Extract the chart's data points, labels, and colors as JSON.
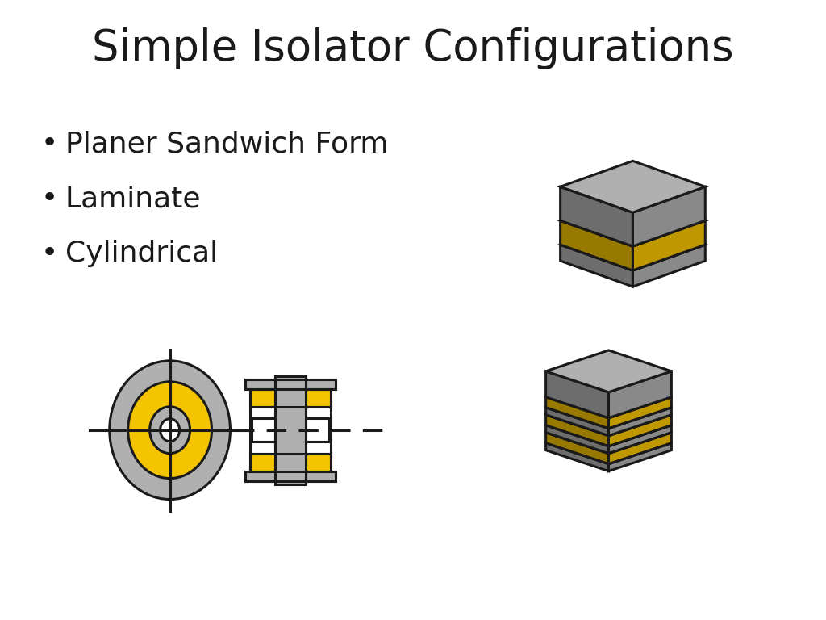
{
  "title": "Simple Isolator Configurations",
  "title_fontsize": 38,
  "bullet_items": [
    "Planer Sandwich Form",
    "Laminate",
    "Cylindrical"
  ],
  "bullet_fontsize": 26,
  "bg_color": "#ffffff",
  "gray_color": "#b0b0b0",
  "gray_dark": "#888888",
  "gray_darker": "#666666",
  "yellow_color": "#f5c400",
  "yellow_dark": "#c49a00",
  "dark_color": "#1a1a1a",
  "line_color": "#1a1a1a",
  "line_width": 2.2
}
